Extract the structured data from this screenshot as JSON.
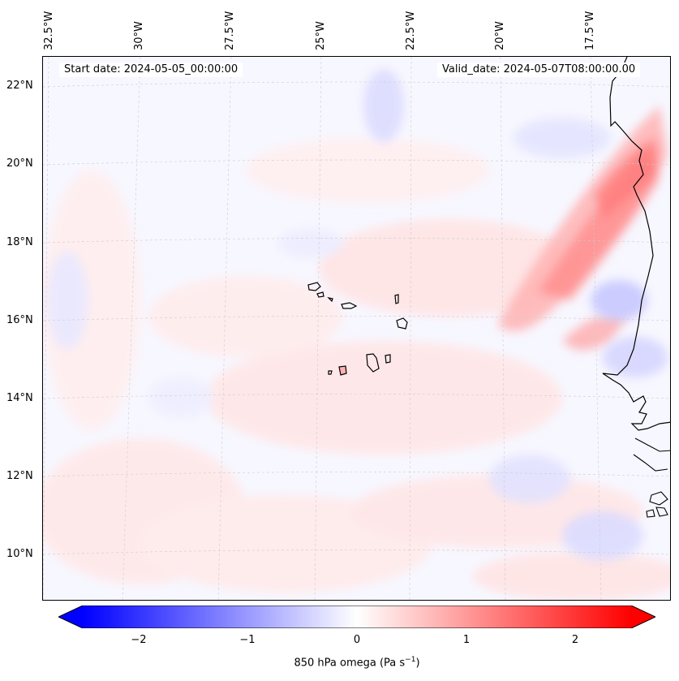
{
  "map": {
    "start_date": "Start date: 2024-05-05_00:00:00",
    "valid_date": "Valid_date: 2024-05-07T08:00:00.00",
    "longitude_labels": [
      "32.5°W",
      "30°W",
      "27.5°W",
      "25°W",
      "22.5°W",
      "20°W",
      "17.5°W"
    ],
    "latitude_labels": [
      "22°N",
      "20°N",
      "18°N",
      "16°N",
      "14°N",
      "12°N",
      "10°N"
    ],
    "field": "850 hPa omega",
    "colormap": "bwr",
    "colors": {
      "negative": "#0000ff",
      "zero": "#ffffff",
      "positive": "#ff0000",
      "coastline": "#000000"
    },
    "gridlines": "dashed"
  },
  "colorbar": {
    "label_main": "850 hPa omega (Pa s",
    "label_exp": "−1",
    "label_end": ")",
    "ticks": [
      "−2",
      "−1",
      "0",
      "1",
      "2"
    ],
    "range": [
      -2.5,
      2.5
    ],
    "extend": "both"
  }
}
